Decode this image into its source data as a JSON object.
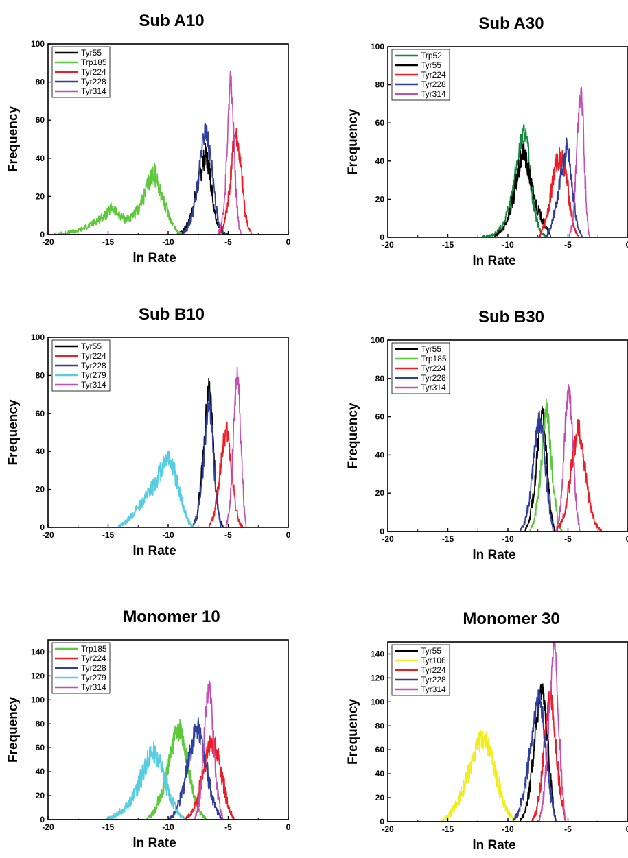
{
  "colors": {
    "black": "#000000",
    "green": "#5cc83a",
    "darkgreen": "#108a3c",
    "red": "#ee1c24",
    "blue": "#2e3f9d",
    "magenta": "#c44eb4",
    "cyan": "#56cde0",
    "yellow": "#f2ee1e"
  },
  "chart_data": [
    {
      "type": "line",
      "title": "Sub A10",
      "xlabel": "ln Rate",
      "ylabel": "Frequency",
      "xlim": [
        -20,
        0
      ],
      "ylim": [
        0,
        100
      ],
      "xticks": [
        "-20",
        "-15",
        "-10",
        "-5",
        "0"
      ],
      "yticks": [
        "0",
        "20",
        "40",
        "60",
        "80",
        "100"
      ],
      "legend_position": "top-left",
      "series": [
        {
          "name": "Tyr55",
          "color": "#000000",
          "x": [
            -9.3,
            -8.7,
            -8.2,
            -7.8,
            -7.4,
            -7.1,
            -6.9,
            -6.6,
            -6.3,
            -6.0,
            -5.6,
            -5.2
          ],
          "y": [
            0,
            2,
            8,
            18,
            30,
            38,
            42,
            36,
            20,
            8,
            2,
            0
          ]
        },
        {
          "name": "Trp185",
          "color": "#5cc83a",
          "x": [
            -19.5,
            -18.5,
            -17.5,
            -16.5,
            -15.8,
            -15.2,
            -14.7,
            -14.2,
            -13.6,
            -13.0,
            -12.5,
            -12.0,
            -11.6,
            -11.2,
            -10.8,
            -10.3,
            -9.8,
            -9.3,
            -8.8
          ],
          "y": [
            0,
            1,
            2,
            5,
            8,
            10,
            14,
            11,
            8,
            9,
            13,
            20,
            28,
            33,
            26,
            16,
            8,
            2,
            0
          ]
        },
        {
          "name": "Tyr224",
          "color": "#ee1c24",
          "x": [
            -5.8,
            -5.4,
            -5.1,
            -4.8,
            -4.6,
            -4.4,
            -4.2,
            -3.9,
            -3.6,
            -3.3,
            -3.0
          ],
          "y": [
            0,
            4,
            14,
            30,
            45,
            53,
            48,
            32,
            12,
            3,
            0
          ]
        },
        {
          "name": "Tyr228",
          "color": "#2e3f9d",
          "x": [
            -8.9,
            -8.4,
            -7.9,
            -7.5,
            -7.2,
            -6.9,
            -6.7,
            -6.4,
            -6.1,
            -5.8,
            -5.4,
            -5.0
          ],
          "y": [
            0,
            3,
            12,
            28,
            45,
            56,
            50,
            36,
            18,
            6,
            1,
            0
          ]
        },
        {
          "name": "Tyr314",
          "color": "#c44eb4",
          "x": [
            -5.9,
            -5.6,
            -5.3,
            -5.1,
            -4.95,
            -4.8,
            -4.65,
            -4.5,
            -4.3,
            -4.1,
            -3.9
          ],
          "y": [
            0,
            4,
            18,
            45,
            68,
            82,
            70,
            45,
            18,
            4,
            0
          ]
        }
      ]
    },
    {
      "type": "line",
      "title": "Sub A30",
      "xlabel": "ln Rate",
      "ylabel": "Frequency",
      "xlim": [
        -20,
        0
      ],
      "ylim": [
        0,
        100
      ],
      "xticks": [
        "-20",
        "-15",
        "-10",
        "-5",
        "0"
      ],
      "yticks": [
        "0",
        "20",
        "40",
        "60",
        "80",
        "100"
      ],
      "legend_position": "top-left",
      "series": [
        {
          "name": "Trp52",
          "color": "#108a3c",
          "x": [
            -12.2,
            -11.2,
            -10.4,
            -9.8,
            -9.3,
            -8.9,
            -8.6,
            -8.3,
            -8.0,
            -7.6,
            -7.2,
            -6.8
          ],
          "y": [
            0,
            1,
            6,
            18,
            36,
            50,
            56,
            44,
            24,
            9,
            2,
            0
          ]
        },
        {
          "name": "Tyr55",
          "color": "#000000",
          "x": [
            -11.2,
            -10.4,
            -9.8,
            -9.3,
            -9.0,
            -8.7,
            -8.4,
            -8.0,
            -7.6,
            -7.2,
            -6.8,
            -6.4
          ],
          "y": [
            0,
            4,
            14,
            28,
            38,
            46,
            38,
            26,
            16,
            10,
            5,
            0
          ]
        },
        {
          "name": "Tyr224",
          "color": "#ee1c24",
          "x": [
            -7.4,
            -7.0,
            -6.6,
            -6.3,
            -6.0,
            -5.7,
            -5.4,
            -5.1,
            -4.8,
            -4.5,
            -4.1
          ],
          "y": [
            0,
            6,
            16,
            28,
            38,
            42,
            40,
            30,
            16,
            5,
            0
          ]
        },
        {
          "name": "Tyr228",
          "color": "#2e3f9d",
          "x": [
            -6.8,
            -6.4,
            -6.0,
            -5.7,
            -5.4,
            -5.1,
            -4.9,
            -4.7,
            -4.4,
            -4.1,
            -3.8
          ],
          "y": [
            0,
            6,
            16,
            28,
            38,
            48,
            42,
            30,
            14,
            4,
            0
          ]
        },
        {
          "name": "Tyr314",
          "color": "#c44eb4",
          "x": [
            -4.9,
            -4.6,
            -4.4,
            -4.2,
            -4.05,
            -3.9,
            -3.75,
            -3.6,
            -3.4,
            -3.2
          ],
          "y": [
            0,
            8,
            28,
            55,
            72,
            78,
            62,
            34,
            10,
            0
          ]
        }
      ]
    },
    {
      "type": "line",
      "title": "Sub B10",
      "xlabel": "ln Rate",
      "ylabel": "Frequency",
      "xlim": [
        -20,
        0
      ],
      "ylim": [
        0,
        100
      ],
      "xticks": [
        "-20",
        "-15",
        "-10",
        "-5",
        "0"
      ],
      "yticks": [
        "0",
        "20",
        "40",
        "60",
        "80",
        "100"
      ],
      "legend_position": "top-left",
      "series": [
        {
          "name": "Tyr55",
          "color": "#000000",
          "x": [
            -8.0,
            -7.6,
            -7.3,
            -7.0,
            -6.8,
            -6.6,
            -6.4,
            -6.2,
            -6.0,
            -5.7,
            -5.4
          ],
          "y": [
            0,
            6,
            22,
            44,
            64,
            74,
            62,
            40,
            18,
            4,
            0
          ]
        },
        {
          "name": "Tyr224",
          "color": "#ee1c24",
          "x": [
            -6.6,
            -6.2,
            -5.9,
            -5.6,
            -5.35,
            -5.1,
            -4.9,
            -4.7,
            -4.4,
            -4.1,
            -3.8
          ],
          "y": [
            0,
            6,
            18,
            34,
            46,
            50,
            42,
            28,
            12,
            3,
            0
          ]
        },
        {
          "name": "Tyr228",
          "color": "#2e3f9d",
          "x": [
            -8.0,
            -7.6,
            -7.3,
            -7.0,
            -6.8,
            -6.6,
            -6.4,
            -6.2,
            -5.9,
            -5.6
          ],
          "y": [
            0,
            5,
            18,
            38,
            56,
            68,
            56,
            34,
            12,
            0
          ]
        },
        {
          "name": "Tyr279",
          "color": "#56cde0",
          "x": [
            -14.2,
            -13.5,
            -12.8,
            -12.2,
            -11.6,
            -11.0,
            -10.5,
            -10.1,
            -9.8,
            -9.5,
            -9.1,
            -8.7,
            -8.3,
            -7.9
          ],
          "y": [
            0,
            3,
            8,
            13,
            18,
            24,
            32,
            38,
            36,
            30,
            20,
            10,
            3,
            0
          ]
        },
        {
          "name": "Tyr314",
          "color": "#c44eb4",
          "x": [
            -5.2,
            -4.9,
            -4.7,
            -4.5,
            -4.35,
            -4.2,
            -4.05,
            -3.9,
            -3.7,
            -3.5
          ],
          "y": [
            0,
            8,
            28,
            58,
            76,
            82,
            66,
            38,
            12,
            0
          ]
        }
      ]
    },
    {
      "type": "line",
      "title": "Sub B30",
      "xlabel": "ln Rate",
      "ylabel": "Frequency",
      "xlim": [
        -20,
        0
      ],
      "ylim": [
        0,
        100
      ],
      "xticks": [
        "-20",
        "-15",
        "-10",
        "-5",
        "0"
      ],
      "yticks": [
        "0",
        "20",
        "40",
        "60",
        "80",
        "100"
      ],
      "legend_position": "top-left",
      "series": [
        {
          "name": "Tyr55",
          "color": "#000000",
          "x": [
            -8.6,
            -8.2,
            -7.9,
            -7.6,
            -7.35,
            -7.1,
            -6.9,
            -6.7,
            -6.4,
            -6.1
          ],
          "y": [
            0,
            6,
            18,
            38,
            56,
            64,
            50,
            30,
            10,
            0
          ]
        },
        {
          "name": "Trp185",
          "color": "#5cc83a",
          "x": [
            -8.2,
            -7.8,
            -7.5,
            -7.2,
            -7.0,
            -6.8,
            -6.6,
            -6.4,
            -6.1,
            -5.8,
            -5.5
          ],
          "y": [
            0,
            6,
            18,
            36,
            52,
            64,
            56,
            38,
            18,
            5,
            0
          ]
        },
        {
          "name": "Tyr224",
          "color": "#ee1c24",
          "x": [
            -6.0,
            -5.6,
            -5.2,
            -4.9,
            -4.6,
            -4.3,
            -4.1,
            -3.8,
            -3.5,
            -3.1,
            -2.7,
            -2.2
          ],
          "y": [
            0,
            4,
            12,
            24,
            38,
            50,
            55,
            44,
            28,
            12,
            4,
            0
          ]
        },
        {
          "name": "Tyr228",
          "color": "#2e3f9d",
          "x": [
            -9.0,
            -8.6,
            -8.2,
            -7.9,
            -7.6,
            -7.35,
            -7.1,
            -6.8,
            -6.5,
            -6.2
          ],
          "y": [
            0,
            5,
            16,
            34,
            52,
            62,
            50,
            28,
            10,
            0
          ]
        },
        {
          "name": "Tyr314",
          "color": "#c44eb4",
          "x": [
            -6.0,
            -5.7,
            -5.45,
            -5.25,
            -5.05,
            -4.9,
            -4.7,
            -4.5,
            -4.25,
            -4.0
          ],
          "y": [
            0,
            8,
            26,
            52,
            72,
            76,
            60,
            34,
            10,
            0
          ]
        }
      ]
    },
    {
      "type": "line",
      "title": "Monomer 10",
      "xlabel": "ln Rate",
      "ylabel": "Frequency",
      "xlim": [
        -20,
        0
      ],
      "ylim": [
        0,
        150
      ],
      "xticks": [
        "-20",
        "-15",
        "-10",
        "-5",
        "0"
      ],
      "yticks": [
        "0",
        "20",
        "40",
        "60",
        "80",
        "100",
        "120",
        "140"
      ],
      "legend_position": "top-left",
      "series": [
        {
          "name": "Trp185",
          "color": "#5cc83a",
          "x": [
            -11.8,
            -11.2,
            -10.7,
            -10.2,
            -9.8,
            -9.4,
            -9.0,
            -8.6,
            -8.2,
            -7.8,
            -7.3,
            -6.8
          ],
          "y": [
            0,
            6,
            18,
            36,
            56,
            70,
            75,
            60,
            38,
            18,
            5,
            0
          ]
        },
        {
          "name": "Tyr224",
          "color": "#ee1c24",
          "x": [
            -8.6,
            -8.0,
            -7.5,
            -7.1,
            -6.7,
            -6.4,
            -6.1,
            -5.8,
            -5.5,
            -5.2,
            -4.9,
            -4.5
          ],
          "y": [
            0,
            6,
            20,
            40,
            58,
            64,
            62,
            52,
            36,
            20,
            8,
            0
          ]
        },
        {
          "name": "Tyr228",
          "color": "#2e3f9d",
          "x": [
            -10.0,
            -9.4,
            -8.9,
            -8.5,
            -8.1,
            -7.8,
            -7.5,
            -7.2,
            -6.8,
            -6.4,
            -6.0,
            -5.5
          ],
          "y": [
            0,
            6,
            20,
            40,
            58,
            72,
            76,
            64,
            44,
            22,
            8,
            0
          ]
        },
        {
          "name": "Tyr279",
          "color": "#56cde0",
          "x": [
            -15.2,
            -14.5,
            -13.8,
            -13.1,
            -12.5,
            -12.0,
            -11.6,
            -11.2,
            -10.8,
            -10.4,
            -10.0,
            -9.5,
            -9.0,
            -8.5
          ],
          "y": [
            0,
            3,
            8,
            16,
            28,
            42,
            52,
            56,
            50,
            38,
            24,
            12,
            4,
            0
          ]
        },
        {
          "name": "Tyr314",
          "color": "#c44eb4",
          "x": [
            -7.8,
            -7.5,
            -7.2,
            -7.0,
            -6.8,
            -6.6,
            -6.4,
            -6.2,
            -6.0,
            -5.7,
            -5.4
          ],
          "y": [
            0,
            10,
            34,
            70,
            98,
            112,
            96,
            64,
            32,
            10,
            0
          ]
        }
      ]
    },
    {
      "type": "line",
      "title": "Monomer 30",
      "xlabel": "ln Rate",
      "ylabel": "Frequency",
      "xlim": [
        -20,
        0
      ],
      "ylim": [
        0,
        150
      ],
      "xticks": [
        "-20",
        "-15",
        "-10",
        "-5",
        "0"
      ],
      "yticks": [
        "0",
        "20",
        "40",
        "60",
        "80",
        "100",
        "120",
        "140"
      ],
      "legend_position": "top-left",
      "series": [
        {
          "name": "Tyr55",
          "color": "#000000",
          "x": [
            -9.0,
            -8.6,
            -8.2,
            -7.9,
            -7.6,
            -7.35,
            -7.1,
            -6.9,
            -6.6,
            -6.3,
            -6.0
          ],
          "y": [
            0,
            8,
            26,
            54,
            84,
            104,
            112,
            92,
            56,
            20,
            0
          ]
        },
        {
          "name": "Tyr106",
          "color": "#f2ee1e",
          "x": [
            -15.6,
            -15.0,
            -14.4,
            -13.8,
            -13.3,
            -12.8,
            -12.4,
            -12.0,
            -11.6,
            -11.1,
            -10.6,
            -10.0,
            -9.4
          ],
          "y": [
            0,
            4,
            12,
            24,
            40,
            56,
            66,
            70,
            62,
            44,
            24,
            8,
            0
          ]
        },
        {
          "name": "Tyr224",
          "color": "#ee1c24",
          "x": [
            -8.0,
            -7.6,
            -7.3,
            -7.0,
            -6.8,
            -6.6,
            -6.4,
            -6.2,
            -5.9,
            -5.6,
            -5.2
          ],
          "y": [
            0,
            10,
            30,
            58,
            84,
            100,
            104,
            86,
            52,
            20,
            0
          ]
        },
        {
          "name": "Tyr228",
          "color": "#2e3f9d",
          "x": [
            -9.6,
            -9.1,
            -8.7,
            -8.3,
            -8.0,
            -7.7,
            -7.4,
            -7.1,
            -6.8,
            -6.4,
            -6.0
          ],
          "y": [
            0,
            8,
            24,
            48,
            72,
            94,
            104,
            88,
            56,
            20,
            0
          ]
        },
        {
          "name": "Tyr314",
          "color": "#c44eb4",
          "x": [
            -7.4,
            -7.1,
            -6.8,
            -6.55,
            -6.35,
            -6.15,
            -5.95,
            -5.75,
            -5.5,
            -5.2
          ],
          "y": [
            0,
            14,
            48,
            92,
            128,
            150,
            126,
            80,
            30,
            0
          ]
        }
      ]
    }
  ]
}
